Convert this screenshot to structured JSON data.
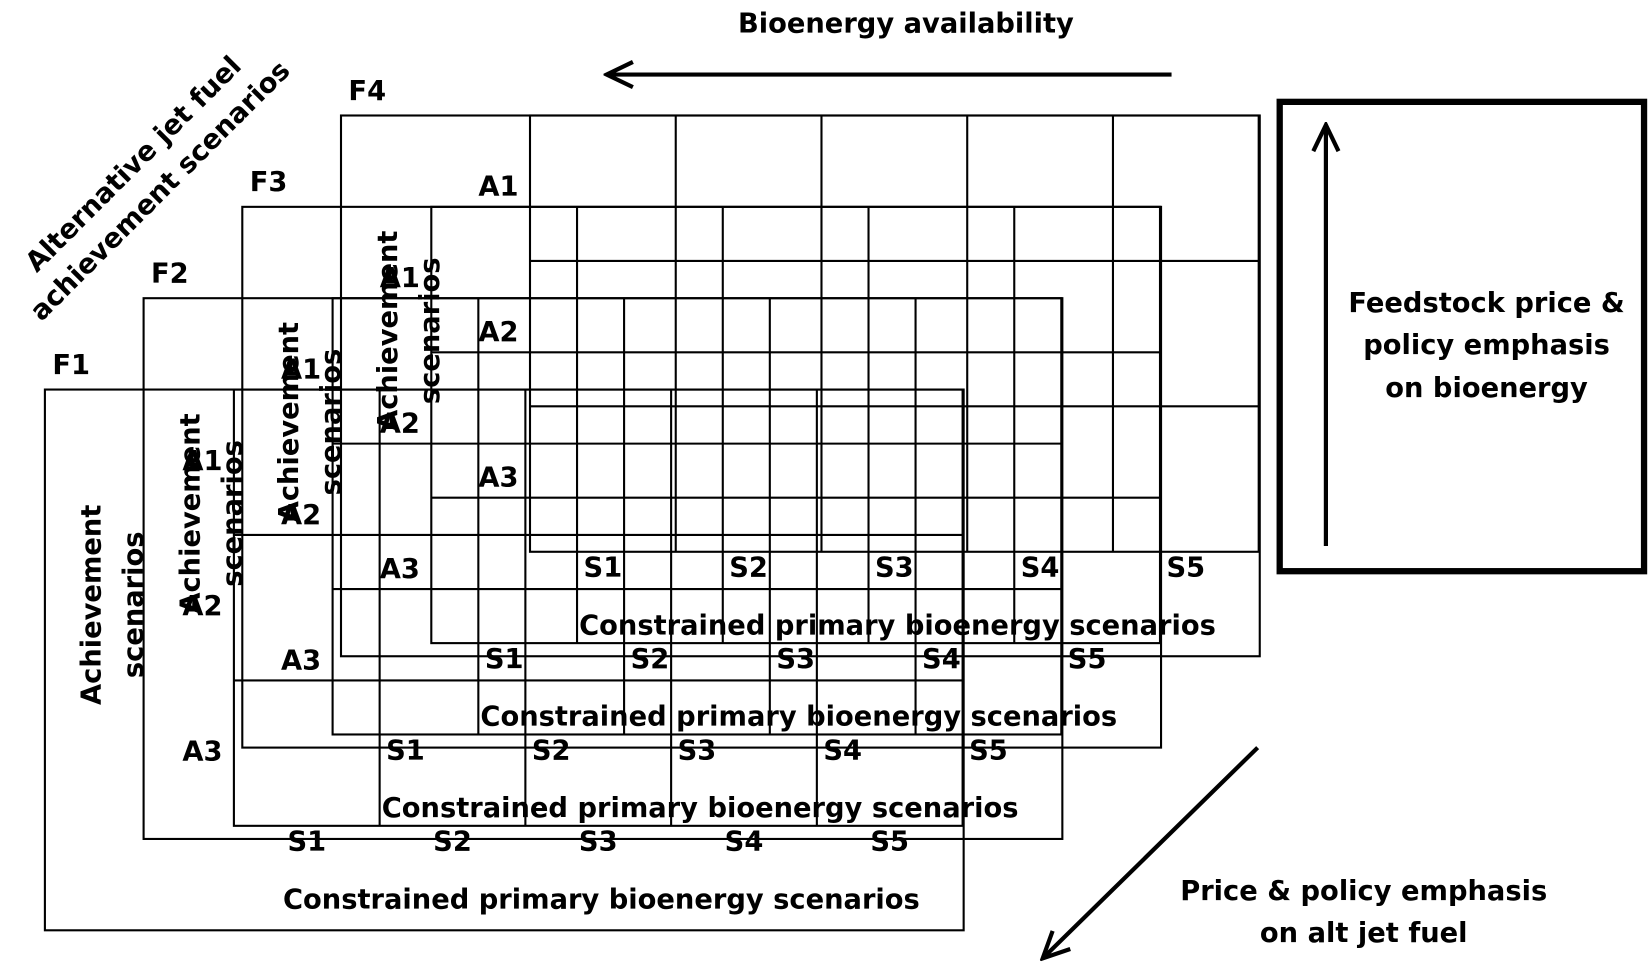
{
  "title": "Bioenergy availability",
  "diagonal_label": [
    "Alternative jet fuel",
    "achievement scenarios"
  ],
  "right_label": [
    "Feedstock price &",
    "policy emphasis",
    "on bioenergy"
  ],
  "bottom_right_label": [
    "Price & policy emphasis",
    "on alt jet fuel"
  ],
  "layers": [
    "F1",
    "F2",
    "F3",
    "F4"
  ],
  "grid": {
    "rows": [
      "A1",
      "A2",
      "A3"
    ],
    "columns": [
      "S1",
      "S2",
      "S3",
      "S4",
      "S5"
    ],
    "x_label": "Constrained primary bioenergy scenarios",
    "y_label": [
      "Achievement",
      "scenarios"
    ]
  }
}
